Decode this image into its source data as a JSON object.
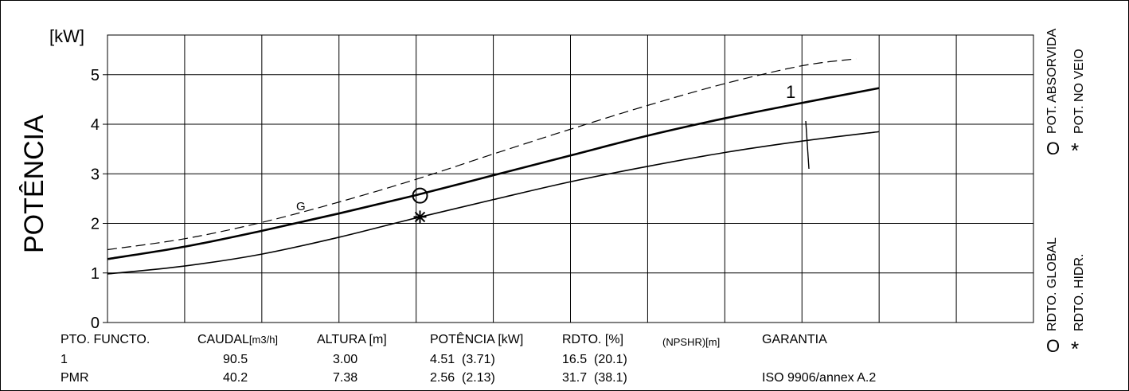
{
  "chart_data": {
    "type": "line",
    "ylabel": "POTÊNCIA",
    "yunit": "[kW]",
    "ylim": [
      0,
      5.8
    ],
    "yticks": [
      0,
      1,
      2,
      3,
      4,
      5
    ],
    "grid": true,
    "series": [
      {
        "name": "1",
        "style": "thick",
        "points": [
          [
            0,
            1.28
          ],
          [
            1,
            1.53
          ],
          [
            2,
            1.85
          ],
          [
            3,
            2.2
          ],
          [
            4,
            2.57
          ],
          [
            5,
            2.97
          ],
          [
            6,
            3.37
          ],
          [
            7,
            3.77
          ],
          [
            8,
            4.12
          ],
          [
            9,
            4.43
          ],
          [
            10,
            4.73
          ]
        ]
      },
      {
        "name": "",
        "style": "thin",
        "points": [
          [
            0,
            0.98
          ],
          [
            1,
            1.14
          ],
          [
            2,
            1.38
          ],
          [
            3,
            1.72
          ],
          [
            4,
            2.11
          ],
          [
            5,
            2.48
          ],
          [
            6,
            2.84
          ],
          [
            7,
            3.15
          ],
          [
            8,
            3.43
          ],
          [
            9,
            3.66
          ],
          [
            10,
            3.85
          ]
        ]
      },
      {
        "name": "G",
        "style": "dashed",
        "points": [
          [
            0,
            1.47
          ],
          [
            1,
            1.69
          ],
          [
            2,
            2.02
          ],
          [
            3,
            2.43
          ],
          [
            4,
            2.89
          ],
          [
            5,
            3.4
          ],
          [
            6,
            3.9
          ],
          [
            7,
            4.38
          ],
          [
            8,
            4.82
          ],
          [
            9,
            5.18
          ],
          [
            9.7,
            5.32
          ]
        ]
      }
    ],
    "markers": [
      {
        "kind": "circle",
        "x": 4.05,
        "y": 2.56
      },
      {
        "kind": "asterisk",
        "x": 4.05,
        "y": 2.13
      }
    ],
    "curve_labels": {
      "thick": "1",
      "dashed": "G"
    }
  },
  "legend": {
    "pot_absorvida": "POT. ABSORVIDA",
    "pot_no_veio": "POT. NO VEIO",
    "rdto_global": "RDTO. GLOBAL",
    "rdto_hidr": "RDTO. HIDR.",
    "circle_symbol": "O",
    "asterisk_symbol": "*"
  },
  "table": {
    "headers": {
      "pto": "PTO. FUNCTO.",
      "caudal": "CAUDAL",
      "caudal_unit": "[m3/h]",
      "altura": "ALTURA [m]",
      "potencia": "POTÊNCIA [kW]",
      "rdto": "RDTO. [%]",
      "npshr": "(NPSHR)[m]",
      "garantia": "GARANTIA"
    },
    "rows": [
      {
        "pto": "1",
        "caudal": "90.5",
        "altura": "3.00",
        "potencia": "4.51  (3.71)",
        "rdto": "16.5  (20.1)",
        "npshr": "",
        "garantia": ""
      },
      {
        "pto": "PMR",
        "caudal": "40.2",
        "altura": "7.38",
        "potencia": "2.56  (2.13)",
        "rdto": "31.7  (38.1)",
        "npshr": "",
        "garantia": "ISO 9906/annex A.2"
      }
    ]
  }
}
